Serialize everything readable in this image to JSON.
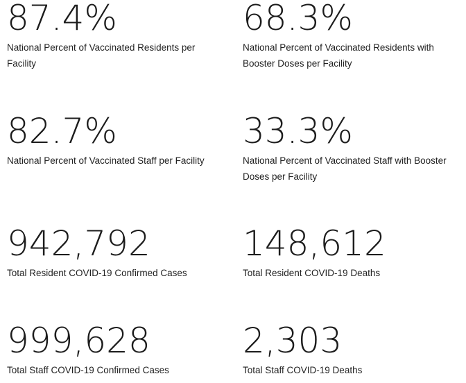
{
  "stats": [
    {
      "value": "87.4%",
      "label": "National Percent of Vaccinated Residents per Facility"
    },
    {
      "value": "68.3%",
      "label": "National Percent of Vaccinated Residents with Booster Doses per Facility"
    },
    {
      "value": "82.7%",
      "label": "National Percent of Vaccinated Staff per Facility"
    },
    {
      "value": "33.3%",
      "label": "National Percent of Vaccinated Staff with Booster Doses per Facility"
    },
    {
      "value": "942,792",
      "label": "Total Resident COVID-19 Confirmed Cases"
    },
    {
      "value": "148,612",
      "label": "Total Resident COVID-19 Deaths"
    },
    {
      "value": "999,628",
      "label": "Total Staff COVID-19 Confirmed Cases"
    },
    {
      "value": "2,303",
      "label": "Total Staff COVID-19 Deaths"
    }
  ]
}
